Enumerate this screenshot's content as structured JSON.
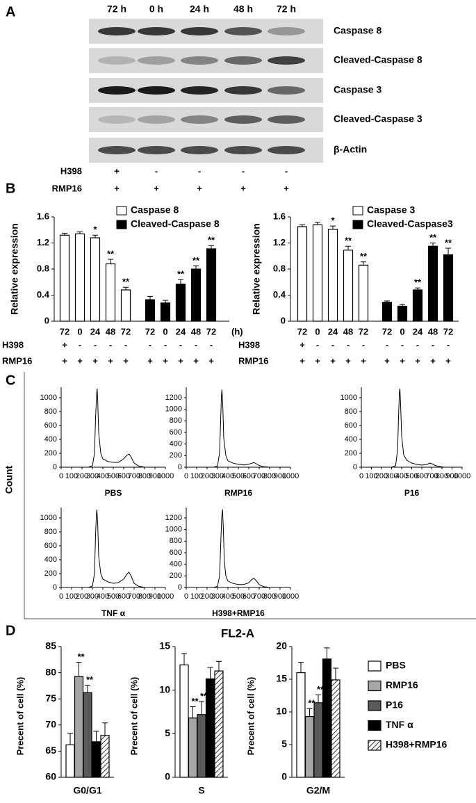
{
  "panel_labels": [
    "A",
    "B",
    "C",
    "D"
  ],
  "blot": {
    "lanes": [
      "72 h",
      "0 h",
      "24 h",
      "48 h",
      "72 h"
    ],
    "rows": [
      "Caspase 8",
      "Cleaved-Caspase 8",
      "Caspase 3",
      "Cleaved-Caspase 3",
      "β-Actin"
    ],
    "treatments": [
      {
        "name": "H398",
        "marks": [
          "+",
          "-",
          "-",
          "-",
          "-"
        ]
      },
      {
        "name": "RMP16",
        "marks": [
          "+",
          "+",
          "+",
          "+",
          "+"
        ]
      }
    ]
  },
  "chart_data": [
    {
      "type": "bar",
      "ylabel": "Relative expression",
      "categories": [
        "72",
        "0",
        "24",
        "48",
        "72"
      ],
      "unit_label": "(h)",
      "ylim": [
        0,
        1.6
      ],
      "yticks": [
        0,
        0.4,
        0.8,
        1.2,
        1.6
      ],
      "series": [
        {
          "name": "Caspase 8",
          "color": "#ffffff",
          "values": [
            1.32,
            1.34,
            1.28,
            0.88,
            0.48
          ],
          "errors": [
            0.03,
            0.03,
            0.04,
            0.07,
            0.04
          ],
          "significance": [
            null,
            null,
            "*",
            "**",
            "**"
          ]
        },
        {
          "name": "Cleaved-Caspase 8",
          "color": "#000000",
          "values": [
            0.33,
            0.28,
            0.57,
            0.8,
            1.11
          ],
          "errors": [
            0.05,
            0.04,
            0.07,
            0.05,
            0.05
          ],
          "significance": [
            null,
            null,
            "**",
            "**",
            "**"
          ]
        }
      ],
      "treatments": [
        {
          "name": "H398",
          "marks": [
            "+",
            "-",
            "-",
            "-",
            "-",
            "-",
            "-",
            "-",
            "-",
            "-"
          ]
        },
        {
          "name": "RMP16",
          "marks": [
            "+",
            "+",
            "+",
            "+",
            "+",
            "+",
            "+",
            "+",
            "+",
            "+"
          ]
        }
      ]
    },
    {
      "type": "bar",
      "ylabel": "Relative expression",
      "categories": [
        "72",
        "0",
        "24",
        "48",
        "72"
      ],
      "ylim": [
        0,
        1.6
      ],
      "yticks": [
        0,
        0.4,
        0.8,
        1.2,
        1.6
      ],
      "series": [
        {
          "name": "Caspase 3",
          "color": "#ffffff",
          "values": [
            1.45,
            1.48,
            1.41,
            1.09,
            0.86
          ],
          "errors": [
            0.03,
            0.04,
            0.05,
            0.06,
            0.05
          ],
          "significance": [
            null,
            null,
            "*",
            "**",
            "**"
          ]
        },
        {
          "name": "Cleaved-Caspase3",
          "color": "#000000",
          "values": [
            0.29,
            0.23,
            0.48,
            1.15,
            1.02
          ],
          "errors": [
            0.02,
            0.03,
            0.03,
            0.05,
            0.1
          ],
          "significance": [
            null,
            null,
            "**",
            "**",
            "**"
          ]
        }
      ],
      "treatments": [
        {
          "name": "H398",
          "marks": [
            "+",
            "-",
            "-",
            "-",
            "-",
            "-",
            "-",
            "-",
            "-",
            "-"
          ]
        },
        {
          "name": "RMP16",
          "marks": [
            "+",
            "+",
            "+",
            "+",
            "+",
            "+",
            "+",
            "+",
            "+",
            "+"
          ]
        }
      ]
    },
    {
      "type": "line",
      "ylabel": "Count",
      "color": "#000000",
      "xlim": [
        0,
        1000
      ],
      "xticks": [
        0,
        100,
        200,
        300,
        400,
        500,
        600,
        700,
        800,
        900,
        1000
      ],
      "panels": [
        {
          "label": "PBS",
          "ylim": [
            0,
            1150
          ],
          "yticks": [
            0,
            200,
            400,
            600,
            800,
            1000
          ],
          "x": [
            260,
            300,
            320,
            330,
            340,
            345,
            350,
            360,
            380,
            400,
            450,
            500,
            550,
            600,
            630,
            650,
            670,
            700,
            740,
            800
          ],
          "values": [
            0,
            20,
            200,
            700,
            1050,
            1130,
            1000,
            500,
            200,
            120,
            80,
            70,
            70,
            120,
            170,
            190,
            150,
            60,
            20,
            0
          ]
        },
        {
          "label": "RMP16",
          "ylim": [
            0,
            1380
          ],
          "yticks": [
            0,
            200,
            400,
            600,
            800,
            1000,
            1200
          ],
          "x": [
            260,
            300,
            320,
            330,
            338,
            343,
            350,
            360,
            380,
            400,
            450,
            500,
            550,
            600,
            630,
            650,
            670,
            700,
            740,
            800
          ],
          "values": [
            0,
            20,
            250,
            800,
            1250,
            1340,
            1100,
            500,
            200,
            110,
            70,
            50,
            40,
            50,
            70,
            80,
            60,
            30,
            10,
            0
          ]
        },
        {
          "label": "P16",
          "ylim": [
            0,
            1150
          ],
          "yticks": [
            0,
            200,
            400,
            600,
            800,
            1000
          ],
          "x": [
            300,
            340,
            360,
            370,
            378,
            383,
            390,
            400,
            420,
            450,
            500,
            550,
            600,
            650,
            680,
            700,
            740,
            780,
            820
          ],
          "values": [
            0,
            20,
            250,
            750,
            1080,
            1130,
            900,
            450,
            180,
            100,
            60,
            40,
            30,
            40,
            60,
            50,
            20,
            10,
            0
          ]
        },
        {
          "label": "TNF α",
          "ylim": [
            0,
            1150
          ],
          "yticks": [
            0,
            200,
            400,
            600,
            800,
            1000
          ],
          "x": [
            260,
            300,
            320,
            330,
            338,
            343,
            350,
            360,
            380,
            400,
            450,
            500,
            550,
            600,
            630,
            650,
            670,
            700,
            740,
            800
          ],
          "values": [
            0,
            20,
            200,
            750,
            1050,
            1120,
            950,
            450,
            200,
            120,
            80,
            60,
            70,
            120,
            190,
            220,
            170,
            60,
            20,
            0
          ]
        },
        {
          "label": "H398+RMP16",
          "ylim": [
            0,
            1380
          ],
          "yticks": [
            0,
            200,
            400,
            600,
            800,
            1000,
            1200
          ],
          "x": [
            260,
            300,
            320,
            330,
            340,
            348,
            355,
            365,
            380,
            400,
            450,
            500,
            550,
            600,
            630,
            650,
            670,
            700,
            740,
            800
          ],
          "values": [
            0,
            20,
            200,
            700,
            1200,
            1350,
            1050,
            450,
            200,
            110,
            70,
            50,
            50,
            80,
            140,
            160,
            120,
            50,
            15,
            0
          ]
        }
      ]
    },
    {
      "type": "grouped-bar",
      "title": "FL2-A",
      "ylabel": "Precent of cell (%)",
      "series": [
        {
          "name": "PBS",
          "color": "#ffffff"
        },
        {
          "name": "RMP16",
          "color": "#a6a6a6"
        },
        {
          "name": "P16",
          "color": "#595959"
        },
        {
          "name": "TNF α",
          "color": "#000000"
        },
        {
          "name": "H398+RMP16",
          "color": "#ffffff",
          "hatch": true
        }
      ],
      "panels": [
        {
          "category": "G0/G1",
          "ylim": [
            60,
            85
          ],
          "yticks": [
            60,
            65,
            70,
            75,
            80,
            85
          ],
          "values": [
            66.2,
            79.3,
            76.2,
            66.8,
            68.0
          ],
          "errors": [
            2.2,
            2.7,
            1.4,
            2.0,
            2.4
          ],
          "significance": [
            null,
            "**",
            "**",
            null,
            null
          ]
        },
        {
          "category": "S",
          "ylim": [
            0,
            15
          ],
          "yticks": [
            0,
            5,
            10,
            15
          ],
          "values": [
            12.9,
            6.8,
            7.2,
            11.3,
            12.2
          ],
          "errors": [
            1.3,
            1.3,
            1.5,
            1.3,
            1.1
          ],
          "significance": [
            null,
            "**",
            "**",
            null,
            null
          ]
        },
        {
          "category": "G2/M",
          "ylim": [
            0,
            20
          ],
          "yticks": [
            0,
            5,
            10,
            15,
            20
          ],
          "values": [
            16.0,
            9.3,
            11.4,
            18.1,
            14.9
          ],
          "errors": [
            1.6,
            1.2,
            1.2,
            1.7,
            1.8
          ],
          "significance": [
            null,
            "**",
            "**",
            null,
            null
          ]
        }
      ]
    }
  ]
}
